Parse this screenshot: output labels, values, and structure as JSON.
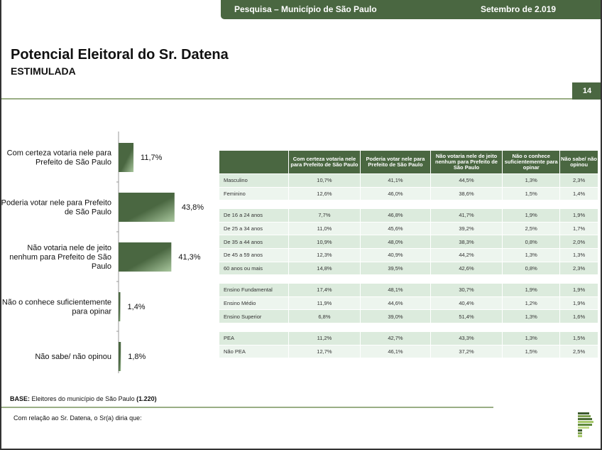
{
  "header": {
    "survey": "Pesquisa – Município de São Paulo",
    "date": "Setembro de 2.019"
  },
  "title": "Potencial Eleitoral do Sr. Datena",
  "subtitle": "ESTIMULADA",
  "page_number": "14",
  "chart_data": {
    "type": "bar",
    "orientation": "horizontal",
    "categories": [
      "Com certeza votaria nele para Prefeito de São Paulo",
      "Poderia votar nele para Prefeito de São Paulo",
      "Não votaria nele de jeito nenhum para Prefeito de São Paulo",
      "Não o conhece suficientemente para opinar",
      "Não sabe/ não opinou"
    ],
    "category_lines": [
      [
        "Com certeza votaria nele para",
        "Prefeito de São Paulo"
      ],
      [
        "Poderia votar nele para Prefeito",
        "de São Paulo"
      ],
      [
        "Não votaria nele de jeito",
        "nenhum para Prefeito de São",
        "Paulo"
      ],
      [
        "Não o conhece suficientemente",
        "para opinar"
      ],
      [
        "Não sabe/ não opinou"
      ]
    ],
    "values": [
      11.7,
      43.8,
      41.3,
      1.4,
      1.8
    ],
    "labels": [
      "11,7%",
      "43,8%",
      "41,3%",
      "1,4%",
      "1,8%"
    ],
    "bar_color": "#4a6741"
  },
  "table": {
    "headers": [
      "",
      "Com certeza votaria nele para Prefeito de São Paulo",
      "Poderia votar nele para Prefeito de São Paulo",
      "Não votaria nele de jeito nenhum para Prefeito de São Paulo",
      "Não o conhece suficientemente para opinar",
      "Não sabe/ não opinou"
    ],
    "groups": [
      [
        [
          "Masculino",
          "10,7%",
          "41,1%",
          "44,5%",
          "1,3%",
          "2,3%"
        ],
        [
          "Feminino",
          "12,6%",
          "46,0%",
          "38,6%",
          "1,5%",
          "1,4%"
        ]
      ],
      [
        [
          "De 16 a 24 anos",
          "7,7%",
          "46,8%",
          "41,7%",
          "1,9%",
          "1,9%"
        ],
        [
          "De 25 a 34 anos",
          "11,0%",
          "45,6%",
          "39,2%",
          "2,5%",
          "1,7%"
        ],
        [
          "De 35 a 44 anos",
          "10,9%",
          "48,0%",
          "38,3%",
          "0,8%",
          "2,0%"
        ],
        [
          "De 45 a 59 anos",
          "12,3%",
          "40,9%",
          "44,2%",
          "1,3%",
          "1,3%"
        ],
        [
          "60 anos ou mais",
          "14,8%",
          "39,5%",
          "42,6%",
          "0,8%",
          "2,3%"
        ]
      ],
      [
        [
          "Ensino Fundamental",
          "17,4%",
          "48,1%",
          "30,7%",
          "1,9%",
          "1,9%"
        ],
        [
          "Ensino Médio",
          "11,9%",
          "44,6%",
          "40,4%",
          "1,2%",
          "1,9%"
        ],
        [
          "Ensino Superior",
          "6,8%",
          "39,0%",
          "51,4%",
          "1,3%",
          "1,6%"
        ]
      ],
      [
        [
          "PEA",
          "11,2%",
          "42,7%",
          "43,3%",
          "1,3%",
          "1,5%"
        ],
        [
          "Não PEA",
          "12,7%",
          "46,1%",
          "37,2%",
          "1,5%",
          "2,5%"
        ]
      ]
    ]
  },
  "base": {
    "label": "BASE:",
    "text": " Eleitores do município de São Paulo ",
    "count": "(1.220)"
  },
  "note": "Com relação ao Sr. Datena, o Sr(a) diria que:"
}
